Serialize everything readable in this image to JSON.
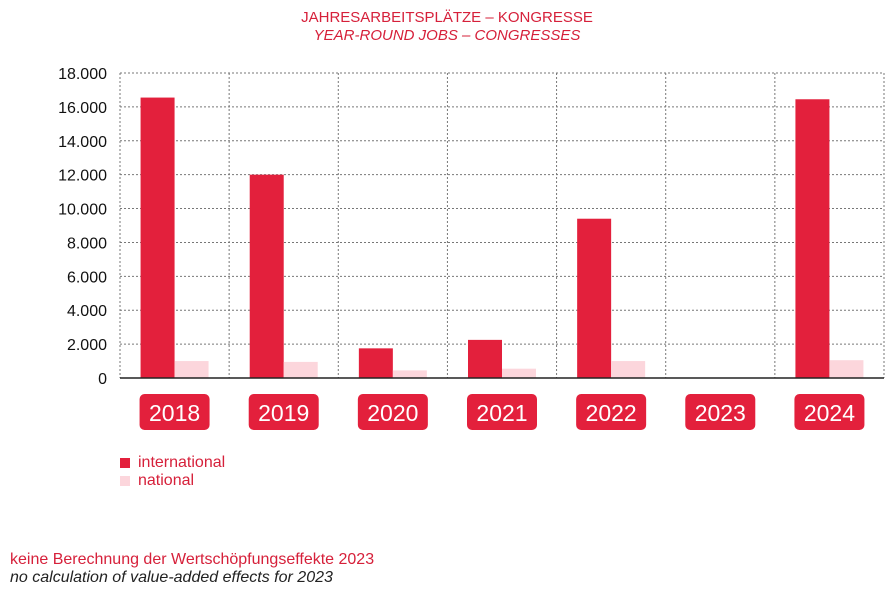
{
  "colors": {
    "international": "#e3203c",
    "national": "#fcd6dc",
    "text_red": "#d6203a"
  },
  "titles": {
    "line1": "JAHRESARBEITSPLÄTZE –  KONGRESSE",
    "line2": "YEAR-ROUND JOBS – CONGRESSES"
  },
  "footnote": {
    "de": "keine Berechnung der Wertschöpfungseffekte 2023",
    "en": "no calculation of value-added effects for 2023"
  },
  "chart_data": {
    "type": "bar",
    "title": "JAHRESARBEITSPLÄTZE –  KONGRESSE / YEAR-ROUND JOBS – CONGRESSES",
    "categories": [
      "2018",
      "2019",
      "2020",
      "2021",
      "2022",
      "2023",
      "2024"
    ],
    "series": [
      {
        "name": "international",
        "values": [
          16550,
          12000,
          1750,
          2250,
          9400,
          null,
          16450
        ]
      },
      {
        "name": "national",
        "values": [
          1000,
          950,
          450,
          550,
          1000,
          null,
          1050
        ]
      }
    ],
    "ylim": [
      0,
      18000
    ],
    "yticks": [
      0,
      2000,
      4000,
      6000,
      8000,
      10000,
      12000,
      14000,
      16000,
      18000
    ],
    "ytick_labels": [
      "0",
      "2.000",
      "4.000",
      "6.000",
      "8.000",
      "10.000",
      "12.000",
      "14.000",
      "16.000",
      "18.000"
    ],
    "grid": true,
    "legend": "bottom-left"
  }
}
